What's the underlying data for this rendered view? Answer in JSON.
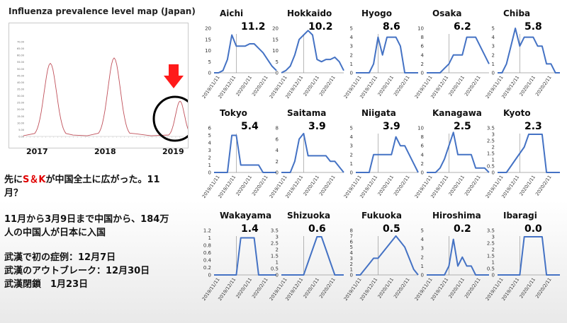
{
  "title": "Influenza prevalence level map (Japan)",
  "flu_chart": {
    "x_labels": [
      "2017",
      "2018",
      "2019"
    ],
    "y_ticks": [
      "70.00",
      "65.00",
      "60.00",
      "55.00",
      "50.00",
      "45.00",
      "40.00",
      "35.00",
      "30.00",
      "25.00",
      "20.00",
      "15.00",
      "10.00",
      "5.00",
      "0.00"
    ],
    "line_color": "#c0505a"
  },
  "notes": {
    "line1_pre": "先に",
    "line1_accent": "S＆K",
    "line1_post": "が中国全土に広がった。11",
    "line1_cont": "月？",
    "line2": "11月から3月9日まで中国から、184万",
    "line3": "人の中国人が日本に入国",
    "line4": "武漢で初の症例：12月7日",
    "line5": "武漢のアウトブレーク：12月30日",
    "line6": "武漢閉鎖　1月23日"
  },
  "chart_data": [
    {
      "type": "line",
      "name": "Aichi",
      "value_label": "11.2",
      "ylim": [
        0,
        20
      ],
      "y_ticks": [
        0,
        5,
        10,
        15,
        20
      ],
      "x_ticks": [
        "2019/11/11",
        "2019/12/11",
        "2020/1/11",
        "2020/2/11"
      ],
      "values": [
        0,
        0,
        1,
        6,
        17,
        12,
        12,
        12,
        13,
        13,
        11,
        9,
        6,
        3,
        1
      ]
    },
    {
      "type": "line",
      "name": "Hokkaido",
      "value_label": "10.2",
      "ylim": [
        0,
        20
      ],
      "y_ticks": [
        0,
        5,
        10,
        15,
        20
      ],
      "x_ticks": [
        "2019/11/11",
        "2019/12/11",
        "2020/1/11",
        "2020/2/11"
      ],
      "values": [
        0,
        1,
        3,
        8,
        15,
        17,
        19,
        17,
        6,
        5,
        6,
        6,
        7,
        5,
        1
      ]
    },
    {
      "type": "line",
      "name": "Hyogo",
      "value_label": "8.6",
      "ylim": [
        0,
        5
      ],
      "y_ticks": [
        0,
        1,
        2,
        3,
        4,
        5
      ],
      "x_ticks": [
        "2019/11/11",
        "2019/12/11",
        "2020/1/11",
        "2020/2/11"
      ],
      "values": [
        0,
        0,
        0,
        0,
        1,
        4,
        2,
        4,
        4,
        4,
        3,
        0,
        0,
        0,
        0
      ]
    },
    {
      "type": "line",
      "name": "Osaka",
      "value_label": "6.2",
      "ylim": [
        0,
        10
      ],
      "y_ticks": [
        0,
        2,
        4,
        6,
        8,
        10
      ],
      "x_ticks": [
        "2019/11/11",
        "2019/12/11",
        "2020/1/11",
        "2020/2/11"
      ],
      "values": [
        0,
        0,
        0,
        0,
        1,
        2,
        4,
        4,
        4,
        8,
        8,
        8,
        6,
        4,
        2
      ]
    },
    {
      "type": "line",
      "name": "Chiba",
      "value_label": "5.8",
      "ylim": [
        0,
        5
      ],
      "y_ticks": [
        0,
        1,
        2,
        3,
        4,
        5
      ],
      "x_ticks": [
        "2019/11/11",
        "2019/12/11",
        "2020/1/11",
        "2020/2/11"
      ],
      "values": [
        0,
        0,
        1,
        3,
        5,
        3,
        4,
        4,
        4,
        3,
        3,
        1,
        1,
        0,
        0
      ]
    },
    {
      "type": "line",
      "name": "Tokyo",
      "value_label": "5.4",
      "ylim": [
        0,
        6
      ],
      "y_ticks": [
        0,
        1,
        2,
        3,
        4,
        5,
        6
      ],
      "x_ticks": [
        "2019/11/11",
        "2019/12/11",
        "2020/1/11",
        "2020/2/11"
      ],
      "values": [
        0,
        0,
        0,
        0,
        5,
        5,
        1,
        1,
        1,
        1,
        1,
        0,
        0,
        0,
        0
      ]
    },
    {
      "type": "line",
      "name": "Saitama",
      "value_label": "3.9",
      "ylim": [
        0,
        8
      ],
      "y_ticks": [
        0,
        2,
        4,
        6,
        8
      ],
      "x_ticks": [
        "2019/11/11",
        "2019/12/11",
        "2020/1/11",
        "2020/2/11"
      ],
      "values": [
        0,
        0,
        0,
        2,
        6,
        7,
        3,
        3,
        3,
        3,
        3,
        2,
        2,
        1,
        0
      ]
    },
    {
      "type": "line",
      "name": "Niigata",
      "value_label": "3.9",
      "ylim": [
        0,
        5
      ],
      "y_ticks": [
        0,
        1,
        2,
        3,
        4,
        5
      ],
      "x_ticks": [
        "2019/11/11",
        "2019/12/11",
        "2020/1/11",
        "2020/2/11"
      ],
      "values": [
        0,
        0,
        0,
        0,
        2,
        2,
        2,
        2,
        2,
        4,
        3,
        3,
        2,
        1,
        0
      ]
    },
    {
      "type": "line",
      "name": "Kanagawa",
      "value_label": "2.5",
      "ylim": [
        0,
        10
      ],
      "y_ticks": [
        0,
        2,
        4,
        6,
        8,
        10
      ],
      "x_ticks": [
        "2019/11/11",
        "2019/12/11",
        "2020/1/11",
        "2020/2/11"
      ],
      "values": [
        0,
        0,
        0,
        1,
        3,
        6,
        9,
        4,
        4,
        4,
        4,
        1,
        1,
        1,
        0
      ]
    },
    {
      "type": "line",
      "name": "Kyoto",
      "value_label": "2.3",
      "ylim": [
        0,
        3.5
      ],
      "y_ticks": [
        0,
        0.5,
        1,
        1.5,
        2,
        2.5,
        3,
        3.5
      ],
      "x_ticks": [
        "2019/11/11",
        "2019/12/11",
        "2020/1/11",
        "2020/2/11"
      ],
      "values": [
        0,
        0,
        0,
        0.5,
        1,
        1.5,
        2,
        3,
        3,
        3,
        3,
        0,
        0,
        0,
        0
      ]
    },
    {
      "type": "line",
      "name": "Wakayama",
      "value_label": "1.4",
      "ylim": [
        0,
        1.2
      ],
      "y_ticks": [
        0,
        0.2,
        0.4,
        0.6,
        0.8,
        1,
        1.2
      ],
      "x_ticks": [
        "2019/11/11",
        "2019/12/11",
        "2020/1/11",
        "2020/2/11"
      ],
      "values": [
        0,
        0,
        0,
        0,
        0,
        0,
        1,
        1,
        1,
        1,
        0,
        0,
        0,
        0,
        0
      ]
    },
    {
      "type": "line",
      "name": "Shizuoka",
      "value_label": "0.6",
      "ylim": [
        0,
        3.5
      ],
      "y_ticks": [
        0,
        0.5,
        1,
        1.5,
        2,
        2.5,
        3,
        3.5
      ],
      "x_ticks": [
        "2019/11/11",
        "2019/12/11",
        "2020/1/11",
        "2020/2/11"
      ],
      "values": [
        0,
        0,
        0,
        0,
        0,
        0,
        1,
        2,
        3,
        3,
        2,
        1,
        0,
        0,
        0
      ]
    },
    {
      "type": "line",
      "name": "Fukuoka",
      "value_label": "0.5",
      "ylim": [
        0,
        8
      ],
      "y_ticks": [
        0,
        1,
        2,
        3,
        4,
        5,
        6,
        7,
        8
      ],
      "x_ticks": [
        "2019/11/11",
        "2019/12/11",
        "2020/1/11",
        "2020/2/11"
      ],
      "values": [
        0,
        0,
        1,
        2,
        3,
        3,
        4,
        5,
        6,
        7,
        6,
        5,
        3,
        1,
        0
      ]
    },
    {
      "type": "line",
      "name": "Hiroshima",
      "value_label": "0.2",
      "ylim": [
        0,
        5
      ],
      "y_ticks": [
        0,
        1,
        2,
        3,
        4,
        5
      ],
      "x_ticks": [
        "2019/11/11",
        "2019/12/11",
        "2020/1/11",
        "2020/2/11"
      ],
      "values": [
        0,
        0,
        0,
        0,
        0,
        1,
        4,
        1,
        2,
        1,
        1,
        0,
        0,
        0,
        0
      ]
    },
    {
      "type": "line",
      "name": "Ibaragi",
      "value_label": "0.0",
      "ylim": [
        0,
        3.5
      ],
      "y_ticks": [
        0,
        0.5,
        1,
        1.5,
        2,
        2.5,
        3,
        3.5
      ],
      "x_ticks": [
        "2019/11/11",
        "2019/12/11",
        "2020/1/11",
        "2020/2/11"
      ],
      "values": [
        0,
        0,
        0,
        0,
        0,
        0,
        3,
        3,
        3,
        3,
        3,
        0,
        0,
        0,
        0
      ]
    }
  ]
}
